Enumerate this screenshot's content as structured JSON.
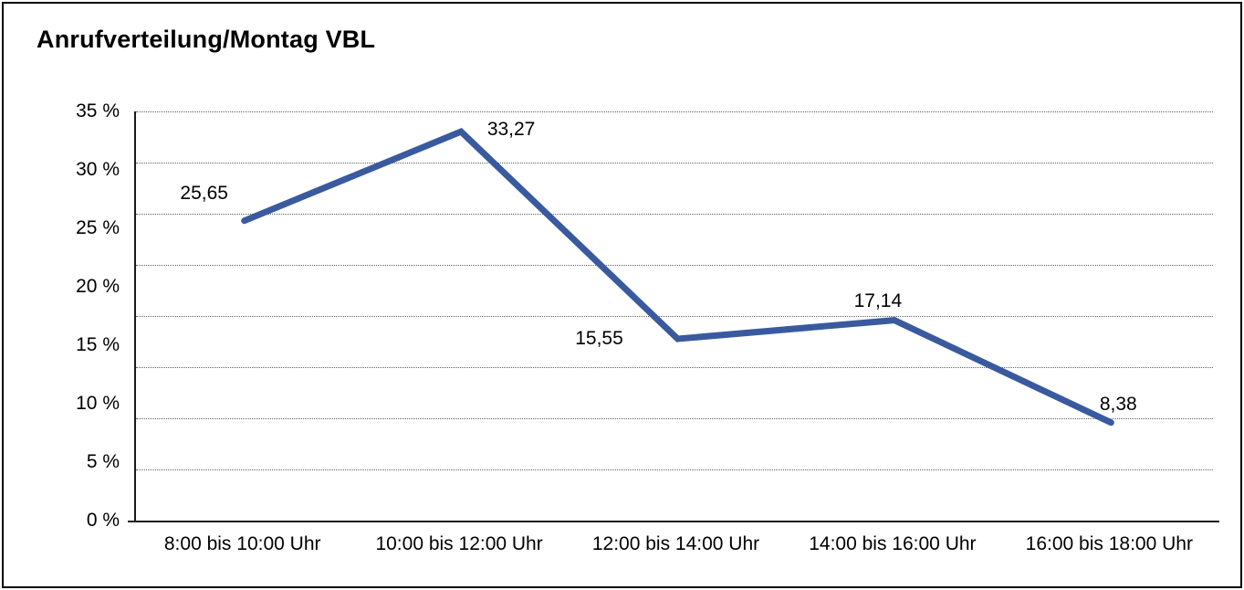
{
  "chart_data": {
    "type": "line",
    "title": "Anrufverteilung/Montag VBL",
    "categories": [
      "8:00 bis 10:00 Uhr",
      "10:00 bis 12:00 Uhr",
      "12:00 bis 14:00 Uhr",
      "14:00 bis 16:00 Uhr",
      "16:00 bis 18:00 Uhr"
    ],
    "values": [
      25.65,
      33.27,
      15.55,
      17.14,
      8.38
    ],
    "point_labels": [
      "25,65",
      "33,27",
      "15,55",
      "17,14",
      "8,38"
    ],
    "y_ticks": [
      "35 %",
      "30 %",
      "25 %",
      "20 %",
      "15 %",
      "10 %",
      "5 %",
      "0 %"
    ],
    "ylim": [
      0,
      35
    ],
    "xlabel": "",
    "ylabel": "",
    "legend": "none",
    "grid": "horizontal-dotted",
    "line_color": "#3A5A9F",
    "axis_color": "#1a1a1a",
    "gridline_color": "#606060"
  }
}
